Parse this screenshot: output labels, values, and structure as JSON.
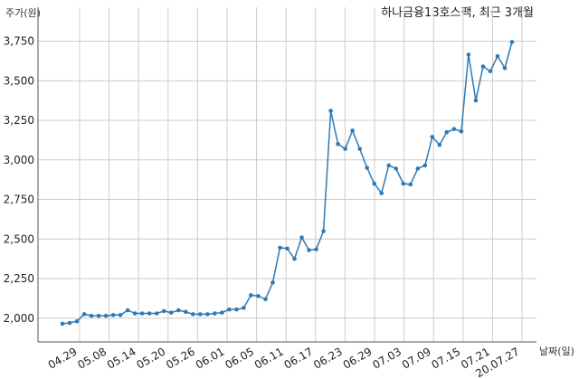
{
  "chart_data": {
    "type": "line",
    "title": "하나금융13호스팩, 최근 3개월",
    "ylabel": "주가(원)",
    "xlabel": "날짜(일)",
    "ylim": [
      1850,
      3850
    ],
    "y_ticks": [
      2000,
      2250,
      2500,
      2750,
      3000,
      3250,
      3500,
      3750
    ],
    "y_tick_labels": [
      "2,000",
      "2,250",
      "2,500",
      "2,750",
      "3,000",
      "3,250",
      "3,500",
      "3,750"
    ],
    "x_tick_labels": [
      "04.29",
      "05.08",
      "05.14",
      "05.20",
      "05.26",
      "06.01",
      "06.05",
      "06.11",
      "06.17",
      "06.23",
      "06.29",
      "07.03",
      "07.09",
      "07.15",
      "07.21",
      "20.07.27"
    ],
    "grid": true,
    "colors": {
      "series": "#2e7ab5"
    },
    "series": [
      {
        "values": [
          1965,
          1970,
          1980,
          2025,
          2015,
          2015,
          2015,
          2020,
          2020,
          2050,
          2030,
          2030,
          2030,
          2030,
          2045,
          2035,
          2050,
          2040,
          2025,
          2025,
          2025,
          2030,
          2035,
          2055,
          2055,
          2065,
          2145,
          2140,
          2120,
          2225,
          2445,
          2440,
          2375,
          2510,
          2430,
          2435,
          2550,
          3310,
          3100,
          3070,
          3185,
          3070,
          2950,
          2850,
          2790,
          2965,
          2945,
          2850,
          2845,
          2945,
          2965,
          3145,
          3095,
          3175,
          3195,
          3180,
          3665,
          3375,
          3590,
          3560,
          3655,
          3580,
          3745
        ]
      }
    ]
  }
}
